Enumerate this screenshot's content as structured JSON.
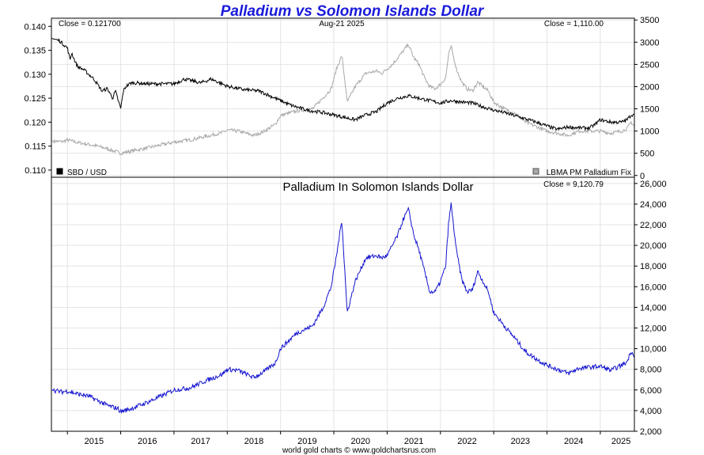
{
  "title": "Palladium vs Solomon Islands Dollar",
  "footer": "world gold charts © www.goldchartsrus.com",
  "colors": {
    "title": "#1a1adb",
    "sbd_line": "#000000",
    "palladium_usd_line": "#a8a8a8",
    "palladium_sbd_line": "#1414d0",
    "grid": "#e4e4e4",
    "frame": "#000000"
  },
  "chart_data": [
    {
      "type": "line",
      "panel": "top",
      "header_left": "Close = 0.121700",
      "header_center": "Aug-21  2025",
      "header_right": "Close = 1,110.00",
      "legend_left": "SBD / USD",
      "legend_right": "LBMA PM Palladium Fix",
      "legend_placement": "bottom-left and bottom-right",
      "grid": true,
      "x_ticks": [
        "2015",
        "2016",
        "2017",
        "2018",
        "2019",
        "2020",
        "2021",
        "2022",
        "2023",
        "2024",
        "2025"
      ],
      "y_left": {
        "ylim": [
          0.1085,
          0.1417
        ],
        "ticks": [
          "0.110",
          "0.115",
          "0.120",
          "0.125",
          "0.130",
          "0.135",
          "0.140"
        ]
      },
      "y_right": {
        "ylim": [
          -40,
          3540
        ],
        "ticks": [
          "0",
          "500",
          "1000",
          "1500",
          "2000",
          "2500",
          "3000",
          "3500"
        ]
      },
      "series": [
        {
          "name": "SBD / USD",
          "axis": "left",
          "x": [
            2014.7,
            2014.85,
            2015.0,
            2015.05,
            2015.08,
            2015.15,
            2015.2,
            2015.3,
            2015.5,
            2015.65,
            2015.75,
            2015.85,
            2015.9,
            2016.0,
            2016.05,
            2016.1,
            2016.2,
            2016.3,
            2016.5,
            2016.8,
            2017.0,
            2017.2,
            2017.5,
            2017.7,
            2017.9,
            2018.0,
            2018.3,
            2018.6,
            2018.9,
            2019.0,
            2019.2,
            2019.5,
            2019.8,
            2020.0,
            2020.2,
            2020.4,
            2020.6,
            2020.8,
            2021.0,
            2021.2,
            2021.4,
            2021.6,
            2021.8,
            2022.0,
            2022.2,
            2022.4,
            2022.6,
            2022.8,
            2023.0,
            2023.2,
            2023.5,
            2023.8,
            2024.0,
            2024.1,
            2024.2,
            2024.4,
            2024.6,
            2024.8,
            2024.9,
            2025.0,
            2025.2,
            2025.4,
            2025.5,
            2025.58,
            2025.64
          ],
          "values": [
            0.1375,
            0.137,
            0.1355,
            0.133,
            0.1345,
            0.1325,
            0.1315,
            0.131,
            0.129,
            0.1265,
            0.127,
            0.125,
            0.1265,
            0.1228,
            0.1265,
            0.1275,
            0.1282,
            0.1282,
            0.128,
            0.128,
            0.128,
            0.129,
            0.1282,
            0.129,
            0.128,
            0.1275,
            0.1268,
            0.1265,
            0.125,
            0.1245,
            0.1235,
            0.1225,
            0.122,
            0.1215,
            0.121,
            0.1205,
            0.1215,
            0.1222,
            0.124,
            0.125,
            0.1255,
            0.125,
            0.1245,
            0.124,
            0.1245,
            0.1242,
            0.124,
            0.1232,
            0.1225,
            0.122,
            0.121,
            0.12,
            0.1192,
            0.1188,
            0.1185,
            0.119,
            0.1188,
            0.1188,
            0.1195,
            0.1205,
            0.12,
            0.12,
            0.1205,
            0.1215,
            0.1217
          ]
        },
        {
          "name": "LBMA PM Palladium Fix",
          "axis": "right",
          "x": [
            2014.7,
            2014.9,
            2015.0,
            2015.2,
            2015.4,
            2015.6,
            2015.75,
            2015.95,
            2016.0,
            2016.2,
            2016.5,
            2016.8,
            2017.0,
            2017.3,
            2017.6,
            2017.9,
            2018.0,
            2018.2,
            2018.5,
            2018.7,
            2018.9,
            2019.0,
            2019.3,
            2019.6,
            2019.8,
            2019.95,
            2020.05,
            2020.15,
            2020.2,
            2020.25,
            2020.4,
            2020.6,
            2020.8,
            2020.9,
            2021.0,
            2021.1,
            2021.2,
            2021.3,
            2021.4,
            2021.5,
            2021.6,
            2021.7,
            2021.8,
            2021.9,
            2022.0,
            2022.1,
            2022.15,
            2022.2,
            2022.3,
            2022.4,
            2022.5,
            2022.6,
            2022.7,
            2022.9,
            2023.0,
            2023.2,
            2023.4,
            2023.6,
            2023.8,
            2024.0,
            2024.2,
            2024.4,
            2024.6,
            2024.8,
            2025.0,
            2025.2,
            2025.4,
            2025.5,
            2025.58,
            2025.64
          ],
          "values": [
            780,
            760,
            800,
            740,
            700,
            650,
            600,
            520,
            500,
            550,
            620,
            700,
            750,
            800,
            880,
            960,
            1020,
            1000,
            900,
            1000,
            1150,
            1350,
            1450,
            1500,
            1750,
            1950,
            2400,
            2700,
            2200,
            1650,
            2000,
            2300,
            2350,
            2300,
            2400,
            2500,
            2650,
            2800,
            2950,
            2650,
            2500,
            2200,
            2000,
            1950,
            2050,
            2200,
            2700,
            2900,
            2400,
            2100,
            1950,
            1900,
            2100,
            1900,
            1650,
            1500,
            1400,
            1200,
            1100,
            1000,
            950,
            900,
            1000,
            1000,
            1000,
            950,
            1000,
            1050,
            1200,
            1110
          ]
        }
      ]
    },
    {
      "type": "line",
      "panel": "bottom",
      "title": "Palladium In Solomon Islands Dollar",
      "header_right": "Close = 9,120.79",
      "grid": true,
      "x_ticks": [
        "2015",
        "2016",
        "2017",
        "2018",
        "2019",
        "2020",
        "2021",
        "2022",
        "2023",
        "2024",
        "2025"
      ],
      "y_right": {
        "ylim": [
          2000,
          26600
        ],
        "ticks": [
          "2,000",
          "4,000",
          "6,000",
          "8,000",
          "10,000",
          "12,000",
          "14,000",
          "16,000",
          "18,000",
          "20,000",
          "22,000",
          "24,000",
          "26,000"
        ]
      },
      "series": [
        {
          "name": "",
          "axis": "right",
          "x": [
            2014.7,
            2014.9,
            2015.0,
            2015.2,
            2015.4,
            2015.6,
            2015.75,
            2015.95,
            2016.0,
            2016.2,
            2016.5,
            2016.8,
            2017.0,
            2017.3,
            2017.6,
            2017.9,
            2018.0,
            2018.2,
            2018.5,
            2018.7,
            2018.9,
            2019.0,
            2019.3,
            2019.6,
            2019.8,
            2019.95,
            2020.05,
            2020.15,
            2020.2,
            2020.25,
            2020.4,
            2020.6,
            2020.8,
            2020.9,
            2021.0,
            2021.1,
            2021.2,
            2021.3,
            2021.4,
            2021.5,
            2021.6,
            2021.7,
            2021.8,
            2021.9,
            2022.0,
            2022.1,
            2022.15,
            2022.2,
            2022.3,
            2022.4,
            2022.5,
            2022.6,
            2022.7,
            2022.9,
            2023.0,
            2023.2,
            2023.4,
            2023.6,
            2023.8,
            2024.0,
            2024.2,
            2024.4,
            2024.6,
            2024.8,
            2025.0,
            2025.2,
            2025.4,
            2025.5,
            2025.58,
            2025.64
          ],
          "values": [
            6000,
            5800,
            5900,
            5600,
            5400,
            4900,
            4500,
            4200,
            3900,
            4200,
            4800,
            5500,
            6000,
            6200,
            6900,
            7500,
            8000,
            7900,
            7200,
            7800,
            8600,
            10000,
            11500,
            12200,
            14000,
            16000,
            19000,
            22500,
            18000,
            13500,
            16500,
            18800,
            19000,
            18800,
            19000,
            20000,
            21000,
            22500,
            23500,
            21000,
            19500,
            17500,
            15500,
            15500,
            16500,
            18000,
            22000,
            24000,
            19500,
            16700,
            15500,
            15700,
            17500,
            15500,
            13500,
            12200,
            11000,
            9700,
            9000,
            8400,
            8000,
            7600,
            8100,
            8200,
            8300,
            7900,
            8400,
            8700,
            9800,
            9120.79
          ]
        }
      ]
    }
  ]
}
